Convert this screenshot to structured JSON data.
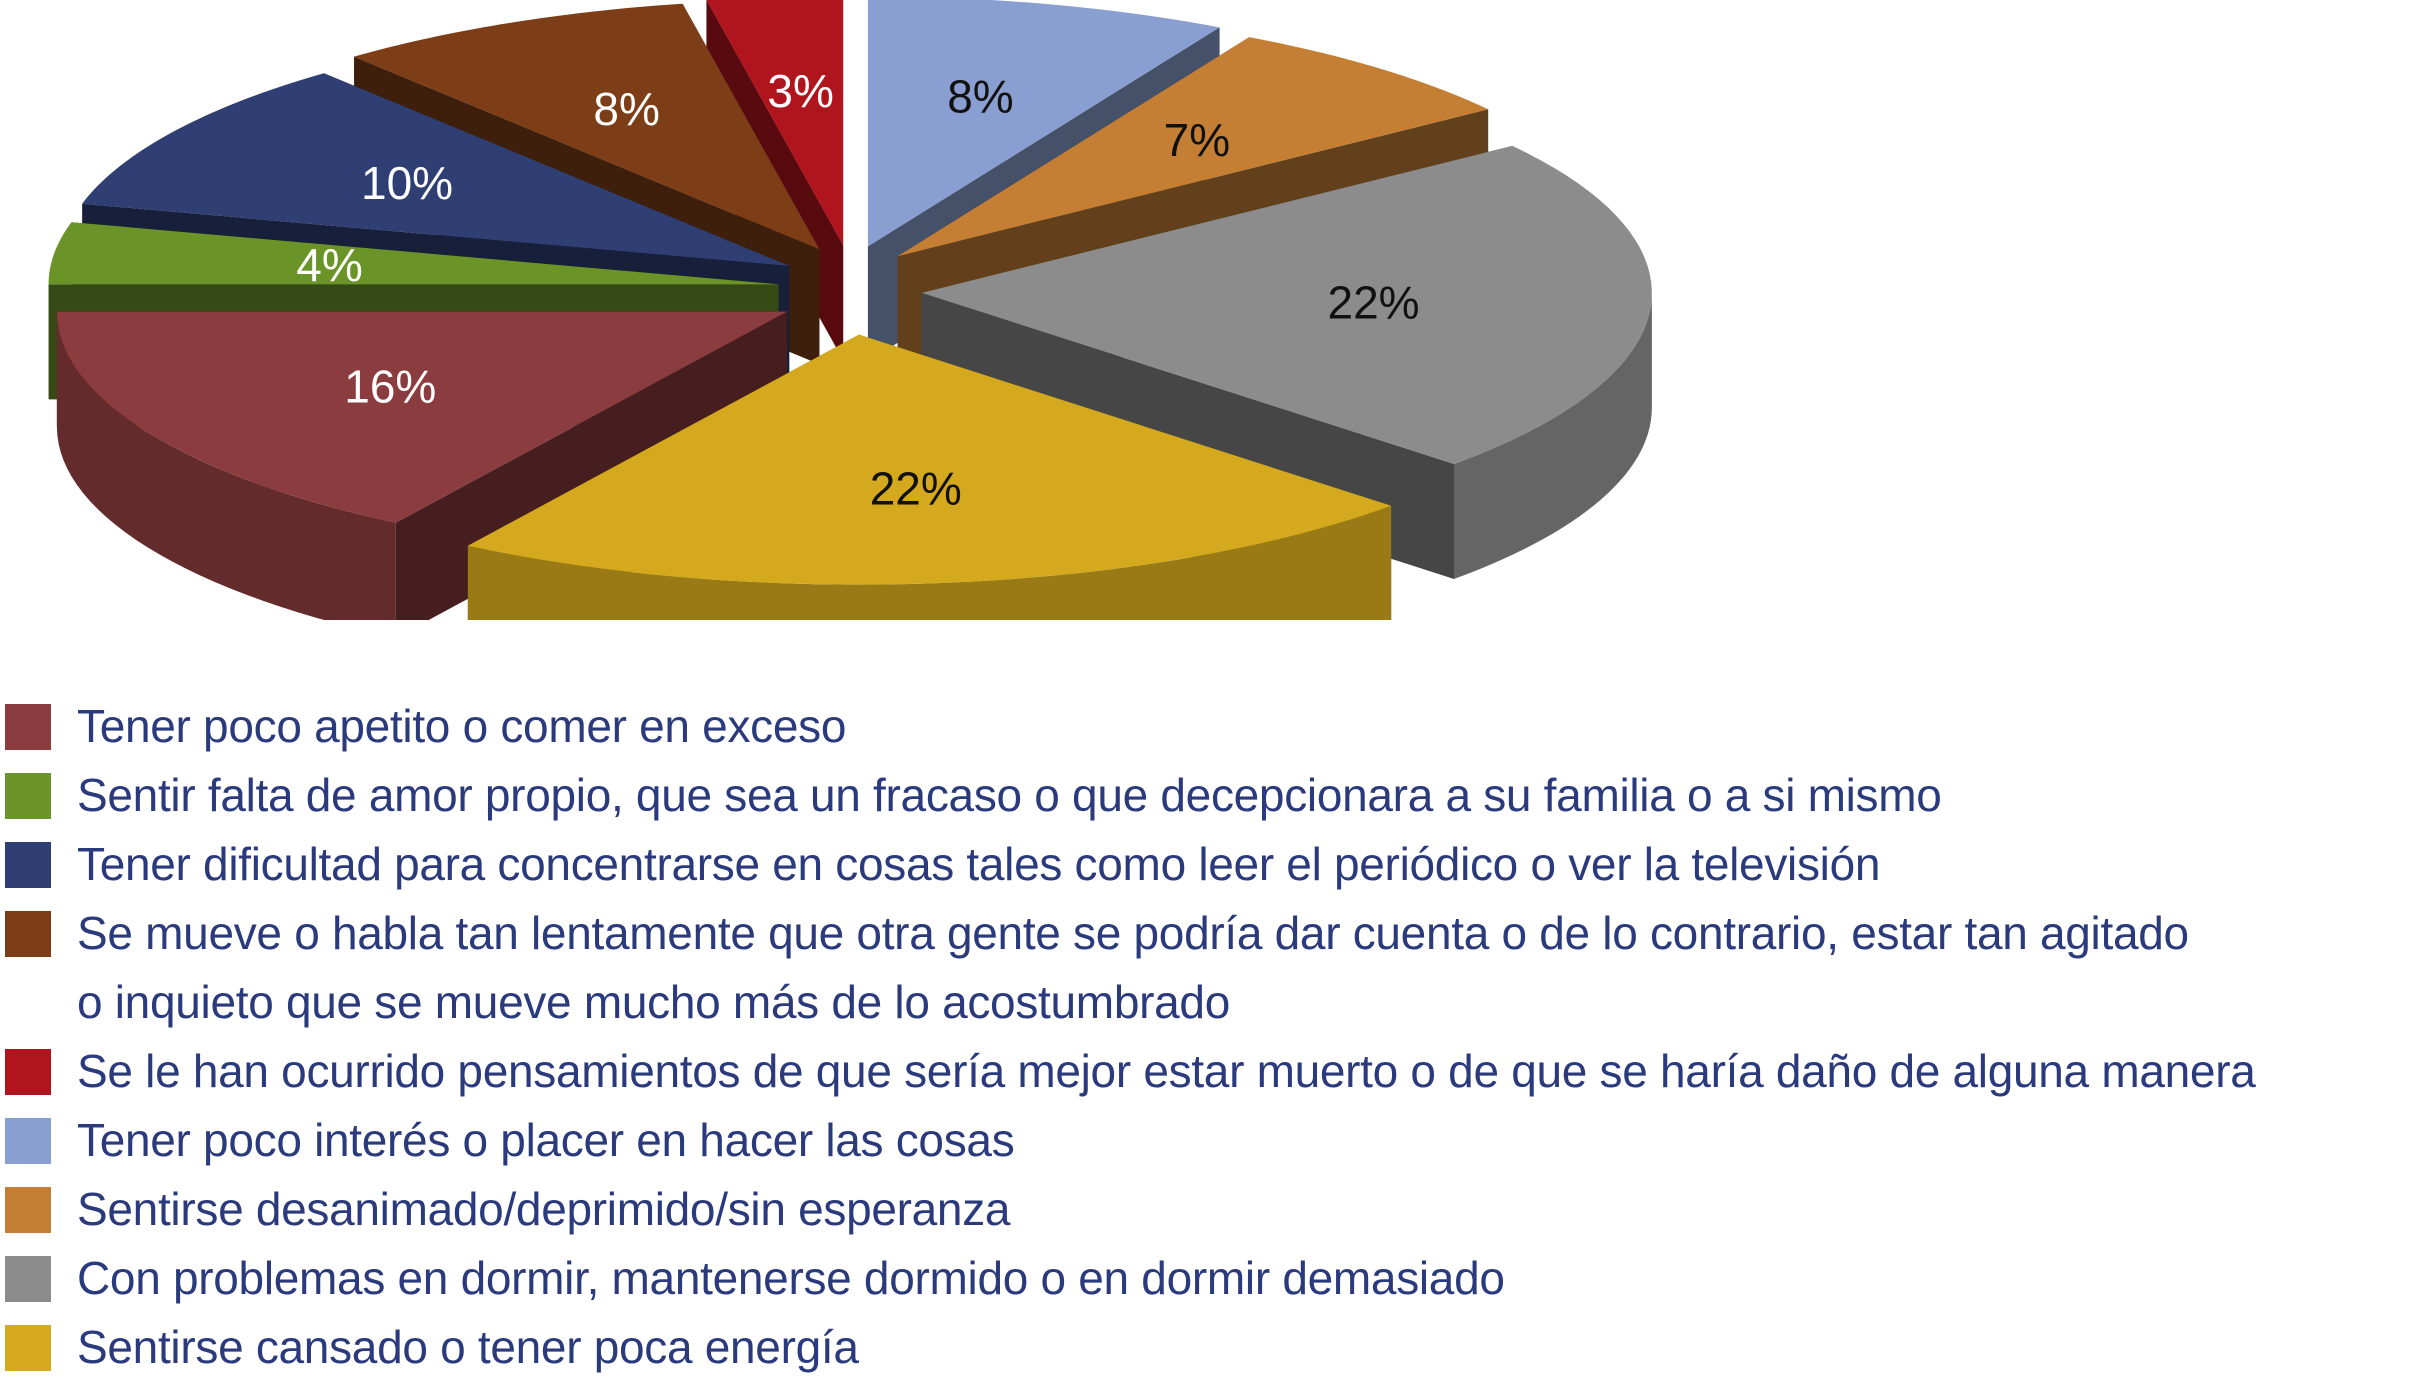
{
  "chart_data": {
    "type": "pie",
    "style": "3d-exploded",
    "title": "",
    "legend_position": "bottom-left",
    "slices": [
      {
        "label": "Tener poco interés o placer en hacer las cosas",
        "value": 8,
        "display": "8%",
        "color": "#8a9fd1",
        "label_color": "#111111"
      },
      {
        "label": "Sentirse desanimado/deprimido/sin esperanza",
        "value": 7,
        "display": "7%",
        "color": "#c47f35",
        "label_color": "#111111"
      },
      {
        "label": "Con problemas en dormir, mantenerse dormido o en dormir demasiado",
        "value": 22,
        "display": "22%",
        "color": "#8c8c8c",
        "label_color": "#111111"
      },
      {
        "label": "Sentirse cansado o tener poca energía",
        "value": 22,
        "display": "22%",
        "color": "#d4a91d",
        "label_color": "#111111"
      },
      {
        "label": "Tener poco apetito o comer en exceso",
        "value": 16,
        "display": "16%",
        "color": "#8b3c3f",
        "label_color": "#ffffff"
      },
      {
        "label": "Sentir falta de amor propio, que sea un fracaso o que decepcionara a su familia o a si mismo",
        "value": 4,
        "display": "4%",
        "color": "#6a9428",
        "label_color": "#ffffff"
      },
      {
        "label": "Tener dificultad para concentrarse en cosas tales como leer el periódico o ver la televisión",
        "value": 10,
        "display": "10%",
        "color": "#2f3e73",
        "label_color": "#ffffff"
      },
      {
        "label": "Se mueve o habla tan lentamente que otra gente se podría dar cuenta o de lo contrario, estar tan agitado o inquieto que se mueve mucho más de lo acostumbrado",
        "value": 8,
        "display": "8%",
        "color": "#7c3d17",
        "label_color": "#ffffff"
      },
      {
        "label": "Se le han ocurrido pensamientos de que sería mejor estar muerto o de que se haría daño de alguna manera",
        "value": 3,
        "display": "3%",
        "color": "#b0141d",
        "label_color": "#ffffff"
      }
    ]
  },
  "legend": [
    {
      "color": "#8b3c3f",
      "lines": [
        "Tener poco apetito o comer en exceso"
      ]
    },
    {
      "color": "#6a9428",
      "lines": [
        "Sentir falta de amor propio, que sea un fracaso o que decepcionara a su familia o a si mismo"
      ]
    },
    {
      "color": "#2f3e73",
      "lines": [
        "Tener dificultad para concentrarse en cosas tales como leer el periódico o ver la televisión"
      ]
    },
    {
      "color": "#7c3d17",
      "lines": [
        "Se mueve o habla tan lentamente que otra gente se podría dar cuenta o de lo contrario, estar tan agitado",
        "o inquieto que se mueve mucho más de lo acostumbrado"
      ]
    },
    {
      "color": "#b0141d",
      "lines": [
        "Se le han ocurrido pensamientos de que sería mejor estar muerto o de que se haría daño de alguna manera"
      ]
    },
    {
      "color": "#8a9fd1",
      "lines": [
        "Tener poco interés o placer en hacer las cosas"
      ]
    },
    {
      "color": "#c47f35",
      "lines": [
        "Sentirse desanimado/deprimido/sin esperanza"
      ]
    },
    {
      "color": "#8c8c8c",
      "lines": [
        "Con problemas en dormir, mantenerse dormido o en dormir demasiado"
      ]
    },
    {
      "color": "#d4a91d",
      "lines": [
        "Sentirse cansado o tener poca energía"
      ]
    }
  ]
}
